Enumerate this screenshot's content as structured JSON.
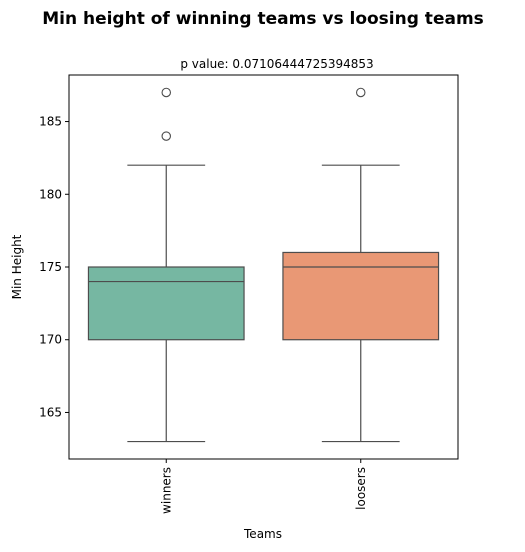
{
  "figure": {
    "title": "Min height of winning teams vs loosing teams"
  },
  "chart_data": {
    "type": "box",
    "title": "p value: 0.07106444725394853",
    "xlabel": "Teams",
    "ylabel": "Min Height",
    "ylim": [
      161.8,
      188.2
    ],
    "yticks": [
      165,
      170,
      175,
      180,
      185
    ],
    "grid": false,
    "legend": "none",
    "categories": [
      "winners",
      "loosers"
    ],
    "series": [
      {
        "color": "#76b7a2",
        "whisker_low": 163,
        "q1": 170,
        "median": 174,
        "q3": 175,
        "whisker_high": 182,
        "outliers": [
          184,
          187
        ]
      },
      {
        "color": "#e99875",
        "whisker_low": 163,
        "q1": 170,
        "median": 175,
        "q3": 176,
        "whisker_high": 182,
        "outliers": [
          187
        ]
      }
    ]
  }
}
